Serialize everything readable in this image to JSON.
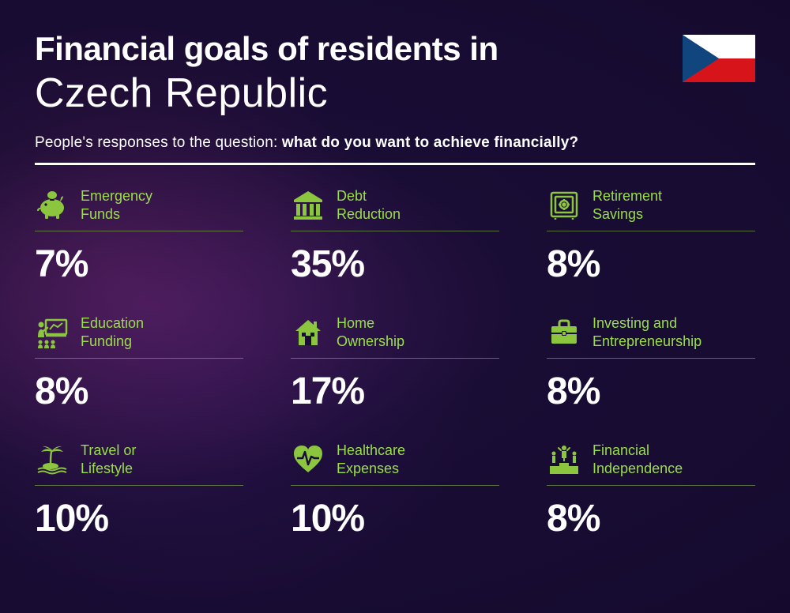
{
  "header": {
    "title_line1": "Financial goals of residents in",
    "title_line2": "Czech Republic",
    "subtitle_prefix": "People's responses to the question: ",
    "subtitle_bold": "what do you want to achieve financially?"
  },
  "colors": {
    "accent": "#8cc63f",
    "text": "#ffffff",
    "label": "#9ade4a"
  },
  "flag": {
    "country": "Czech Republic",
    "blue": "#11457e",
    "white": "#ffffff",
    "red": "#d7141a"
  },
  "cards": [
    {
      "icon": "piggy-bank",
      "label": "Emergency\nFunds",
      "value": "7%"
    },
    {
      "icon": "bank",
      "label": "Debt\nReduction",
      "value": "35%"
    },
    {
      "icon": "safe",
      "label": "Retirement\nSavings",
      "value": "8%"
    },
    {
      "icon": "presentation",
      "label": "Education\nFunding",
      "value": "8%"
    },
    {
      "icon": "house",
      "label": "Home\nOwnership",
      "value": "17%"
    },
    {
      "icon": "briefcase",
      "label": "Investing and\nEntrepreneurship",
      "value": "8%"
    },
    {
      "icon": "island",
      "label": "Travel or\nLifestyle",
      "value": "10%"
    },
    {
      "icon": "heart-pulse",
      "label": "Healthcare\nExpenses",
      "value": "10%"
    },
    {
      "icon": "podium",
      "label": "Financial\nIndependence",
      "value": "8%"
    }
  ]
}
